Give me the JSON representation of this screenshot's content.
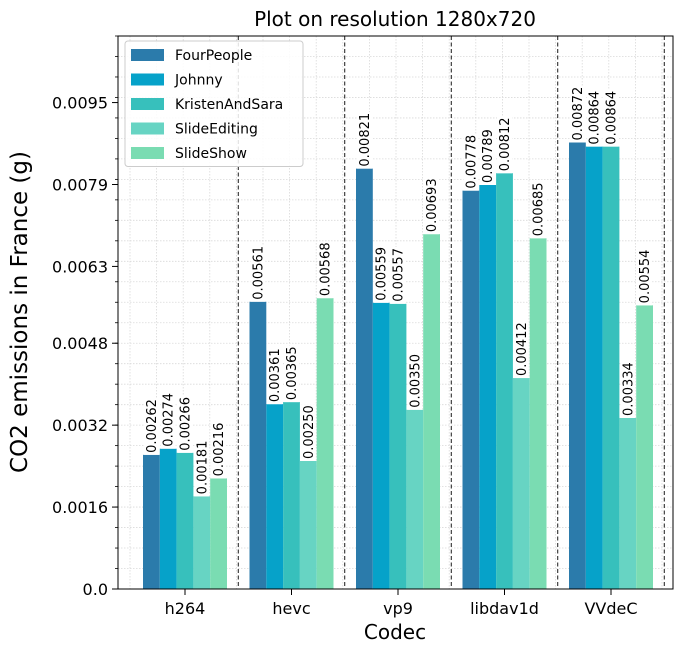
{
  "chart_data": {
    "type": "bar",
    "title": "Plot on resolution 1280x720",
    "xlabel": "Codec",
    "ylabel": "CO2 emissions in France (g)",
    "categories": [
      "h264",
      "hevc",
      "vp9",
      "libdav1d",
      "VVdeC"
    ],
    "series": [
      {
        "name": "FourPeople",
        "color": "#2b7bab",
        "values": [
          0.00262,
          0.00561,
          0.00821,
          0.00778,
          0.00872
        ]
      },
      {
        "name": "Johnny",
        "color": "#06a2c9",
        "values": [
          0.00274,
          0.00361,
          0.00559,
          0.00789,
          0.00864
        ]
      },
      {
        "name": "KristenAndSara",
        "color": "#37c0bc",
        "values": [
          0.00266,
          0.00365,
          0.00557,
          0.00812,
          0.00864
        ]
      },
      {
        "name": "SlideEditing",
        "color": "#67d4c3",
        "values": [
          0.00181,
          0.0025,
          0.0035,
          0.00412,
          0.00334
        ]
      },
      {
        "name": "SlideShow",
        "color": "#7adcb2",
        "values": [
          0.00216,
          0.00568,
          0.00693,
          0.00685,
          0.00554
        ]
      }
    ],
    "bar_labels": [
      [
        "0.00262",
        "0.00561",
        "0.00821",
        "0.00778",
        "0.00872"
      ],
      [
        "0.00274",
        "0.00361",
        "0.00559",
        "0.00789",
        "0.00864"
      ],
      [
        "0.00266",
        "0.00365",
        "0.00557",
        "0.00812",
        "0.00864"
      ],
      [
        "0.00181",
        "0.00250",
        "0.00350",
        "0.00412",
        "0.00334"
      ],
      [
        "0.00216",
        "0.00568",
        "0.00693",
        "0.00685",
        "0.00554"
      ]
    ],
    "yticks": [
      0.0,
      0.0016,
      0.0032,
      0.0048,
      0.0063,
      0.0079,
      0.0095
    ],
    "ytick_labels": [
      "0.0",
      "0.0016",
      "0.0032",
      "0.0048",
      "0.0063",
      "0.0079",
      "0.0095"
    ],
    "ylim": [
      0,
      0.0108
    ],
    "grid": true,
    "legend_position": "top-left"
  }
}
